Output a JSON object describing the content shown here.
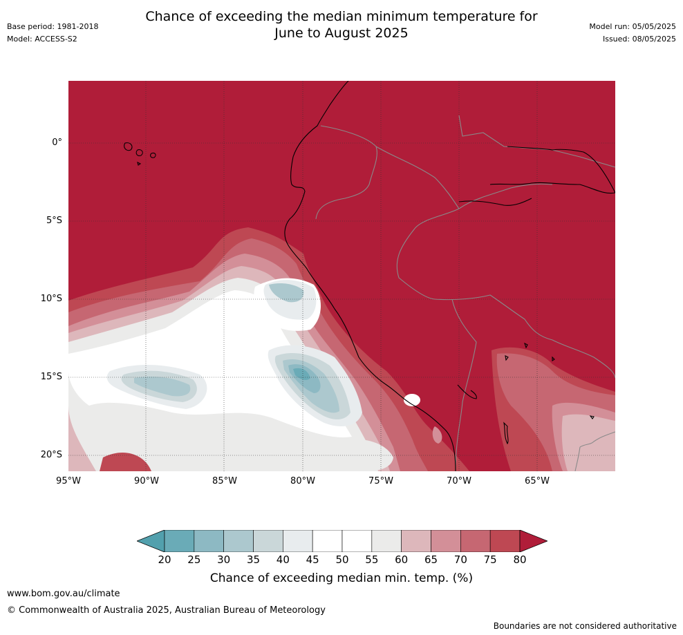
{
  "header": {
    "title_line1": "Chance of exceeding the median minimum temperature for",
    "title_line2": "June to August 2025",
    "base_period": "Base period: 1981-2018",
    "model": "Model: ACCESS-S2",
    "model_run": "Model run: 05/05/2025",
    "issued": "Issued: 08/05/2025"
  },
  "map": {
    "lat_labels": [
      "0°",
      "5°S",
      "10°S",
      "15°S",
      "20°S"
    ],
    "lon_labels": [
      "95°W",
      "90°W",
      "85°W",
      "80°W",
      "75°W",
      "70°W",
      "65°W"
    ],
    "extent": {
      "lon_min": -95,
      "lon_max": -60.2,
      "lat_min": -21.1,
      "lat_max": 4
    }
  },
  "colorbar": {
    "ticks": [
      "20",
      "25",
      "30",
      "35",
      "40",
      "45",
      "50",
      "55",
      "60",
      "65",
      "70",
      "75",
      "80"
    ],
    "colors": [
      "#6aabb7",
      "#8db9c3",
      "#acc8ce",
      "#cad7d9",
      "#e8ecee",
      "#ffffff",
      "#ffffff",
      "#ebebea",
      "#ddb7bb",
      "#d38f98",
      "#c66772",
      "#be4853"
    ],
    "under_color": "#52a0ad",
    "over_color": "#b01d39",
    "label": "Chance of exceeding median min. temp. (%)"
  },
  "footer": {
    "url": "www.bom.gov.au/climate",
    "copyright": "© Commonwealth of Australia 2025, Australian Bureau of Meteorology",
    "note": "Boundaries are not considered authoritative"
  }
}
